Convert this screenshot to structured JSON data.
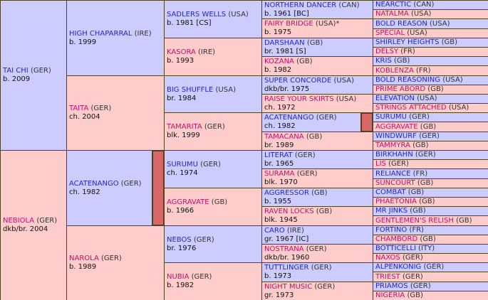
{
  "generations": [
    [
      {
        "name": "TAI CHI",
        "country": "(GER)",
        "details": "b. 2009"
      },
      {
        "name": "NEBIOLA",
        "country": "(GER)",
        "details": "dkb/br. 2004"
      }
    ],
    [
      {
        "name": "HIGH CHAPARRAL",
        "country": "(IRE)",
        "details": "b. 1999"
      },
      {
        "name": "TAITA",
        "country": "(GER)",
        "details": "ch. 2004"
      },
      {
        "name": "ACATENANGO",
        "country": "(GER)",
        "details": "ch. 1982",
        "inbred": true
      },
      {
        "name": "NAROLA",
        "country": "(GER)",
        "details": "b. 1989"
      }
    ],
    [
      {
        "name": "SADLERS WELLS",
        "country": "(USA)",
        "details": "b. 1981 [CS]"
      },
      {
        "name": "KASORA",
        "country": "(IRE)",
        "details": "b. 1993"
      },
      {
        "name": "BIG SHUFFLE",
        "country": "(USA)",
        "details": "br. 1984"
      },
      {
        "name": "TAMARITA",
        "country": "(GER)",
        "details": "blk. 1999"
      },
      {
        "name": "SURUMU",
        "country": "(GER)",
        "details": "ch. 1974"
      },
      {
        "name": "AGGRAVATE",
        "country": "(GB)",
        "details": "b. 1966"
      },
      {
        "name": "NEBOS",
        "country": "(GER)",
        "details": "br. 1976"
      },
      {
        "name": "NUBIA",
        "country": "(GER)",
        "details": "b. 1982"
      }
    ],
    [
      {
        "name": "NORTHERN DANCER",
        "country": "(CAN)",
        "details": "b. 1961 [BC]"
      },
      {
        "name": "FAIRY BRIDGE",
        "country": "(USA)",
        "suffix": "*",
        "details": "b. 1975"
      },
      {
        "name": "DARSHAAN",
        "country": "(GB)",
        "details": "br. 1981 [S]"
      },
      {
        "name": "KOZANA",
        "country": "(GB)",
        "details": "b. 1982"
      },
      {
        "name": "SUPER CONCORDE",
        "country": "(USA)",
        "details": "dkb/br. 1975"
      },
      {
        "name": "RAISE YOUR SKIRTS",
        "country": "(USA)",
        "details": "ch. 1972"
      },
      {
        "name": "ACATENANGO",
        "country": "(GER)",
        "details": "ch. 1982",
        "inbred": true
      },
      {
        "name": "TAMACANA",
        "country": "(GB)",
        "details": "br. 1989"
      },
      {
        "name": "LITERAT",
        "country": "(GER)",
        "details": "br. 1965"
      },
      {
        "name": "SURAMA",
        "country": "(GER)",
        "details": "blk. 1970"
      },
      {
        "name": "AGGRESSOR",
        "country": "(GB)",
        "details": "b. 1955"
      },
      {
        "name": "RAVEN LOCKS",
        "country": "(GB)",
        "details": "blk. 1945"
      },
      {
        "name": "CARO",
        "country": "(IRE)",
        "details": "gr. 1967 [IC]"
      },
      {
        "name": "NOSTRANA",
        "country": "(GER)",
        "details": "dkb/br. 1960"
      },
      {
        "name": "TUTTLINGER",
        "country": "(GER)",
        "details": "b. 1973"
      },
      {
        "name": "NIGHT MUSIC",
        "country": "(GER)",
        "details": "gr. 1973"
      }
    ],
    [
      {
        "name": "NEARCTIC",
        "country": "(CAN)"
      },
      {
        "name": "NATALMA",
        "country": "(USA)"
      },
      {
        "name": "BOLD REASON",
        "country": "(USA)"
      },
      {
        "name": "SPECIAL",
        "country": "(USA)"
      },
      {
        "name": "SHIRLEY HEIGHTS",
        "country": "(GB)"
      },
      {
        "name": "DELSY",
        "country": "(FR)"
      },
      {
        "name": "KRIS",
        "country": "(GB)"
      },
      {
        "name": "KOBLENZA",
        "country": "(FR)"
      },
      {
        "name": "BOLD REASONING",
        "country": "(USA)"
      },
      {
        "name": "PRIME ABORD",
        "country": "(GB)"
      },
      {
        "name": "ELEVATION",
        "country": "(USA)"
      },
      {
        "name": "STRINGS ATTACHED",
        "country": "(USA)"
      },
      {
        "name": "SURUMU",
        "country": "(GER)"
      },
      {
        "name": "AGGRAVATE",
        "country": "(GB)"
      },
      {
        "name": "WINDWURF",
        "country": "(GER)"
      },
      {
        "name": "TAMMYRA",
        "country": "(GB)"
      },
      {
        "name": "BIRKHAHN",
        "country": "(GER)"
      },
      {
        "name": "LIS",
        "country": "(GER)"
      },
      {
        "name": "RELIANCE",
        "country": "(FR)"
      },
      {
        "name": "SUNCOURT",
        "country": "(GB)"
      },
      {
        "name": "COMBAT",
        "country": "(GB)"
      },
      {
        "name": "PHAETONIA",
        "country": "(GB)"
      },
      {
        "name": "MR JINKS",
        "country": "(GB)"
      },
      {
        "name": "GENTLEMEN'S RELISH",
        "country": "(GB)"
      },
      {
        "name": "FORTINO",
        "country": "(FR)"
      },
      {
        "name": "CHAMBORD",
        "country": "(GB)"
      },
      {
        "name": "BOTTICELLI",
        "country": "(ITY)"
      },
      {
        "name": "NAXOS",
        "country": "(GER)"
      },
      {
        "name": "ALPENKONIG",
        "country": "(GER)"
      },
      {
        "name": "TRIEST",
        "country": "(GER)"
      },
      {
        "name": "PRIAMOS",
        "country": "(GER)"
      },
      {
        "name": "NIGERIA",
        "country": "(GB)"
      }
    ]
  ]
}
